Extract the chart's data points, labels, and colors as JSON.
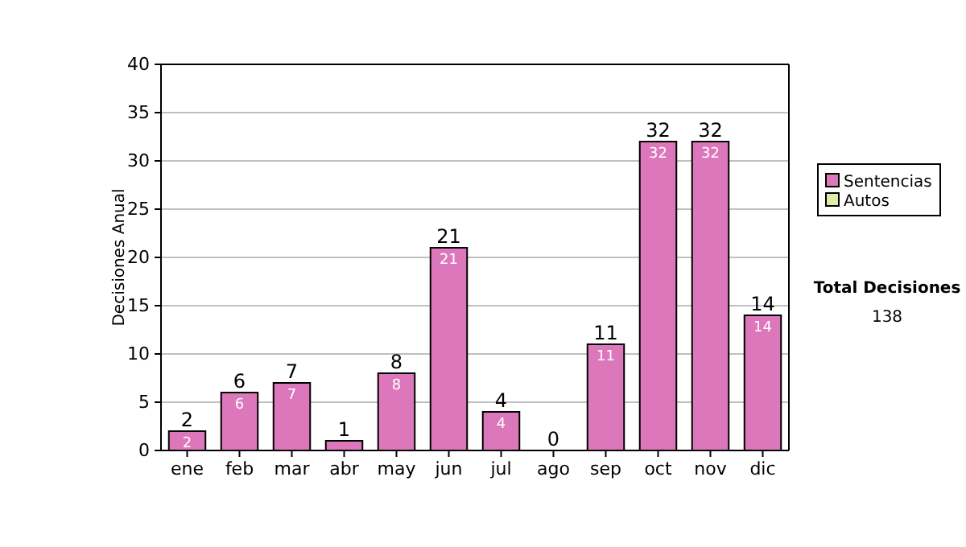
{
  "chart_data": {
    "type": "bar",
    "stacked": true,
    "ylabel": "Decisiones Anual",
    "categories": [
      "ene",
      "feb",
      "mar",
      "abr",
      "may",
      "jun",
      "jul",
      "ago",
      "sep",
      "oct",
      "nov",
      "dic"
    ],
    "series": [
      {
        "name": "Sentencias",
        "color": "#dd77bb",
        "values": [
          2,
          6,
          7,
          1,
          8,
          21,
          4,
          0,
          11,
          32,
          32,
          14
        ],
        "value_labels": [
          "2",
          "6",
          "7",
          null,
          "8",
          "21",
          "4",
          null,
          "11",
          "32",
          "32",
          "14"
        ]
      },
      {
        "name": "Autos",
        "color": "#ddeeaa",
        "values": [
          0,
          0,
          0,
          0,
          0,
          0,
          0,
          0,
          0,
          0,
          0,
          0
        ]
      }
    ],
    "totals": [
      "2",
      "6",
      "7",
      "1",
      "8",
      "21",
      "4",
      "0",
      "11",
      "32",
      "32",
      "14"
    ],
    "ylim": [
      0,
      40
    ],
    "yticks": [
      0,
      5,
      10,
      15,
      20,
      25,
      30,
      35,
      40
    ],
    "grid": "y",
    "legend": "right",
    "annotations": [
      "Total Decisiones",
      "138"
    ]
  }
}
